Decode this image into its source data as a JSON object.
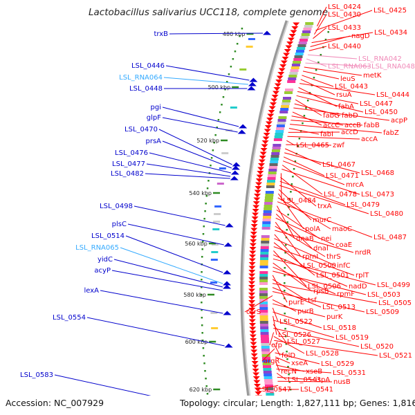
{
  "title": "Lactobacillus salivarius UCC118, complete genome",
  "footer": {
    "accession": "Accession: NC_007929",
    "info": "Topology: circular; Length: 1,827,111 bp; Genes: 1,816"
  },
  "colors": {
    "forward": "#ff0000",
    "reverse": "#0000cc",
    "rna": "#33aaff",
    "rna_light": "#f08ab8",
    "backbone": "#888888",
    "kbp_tick": "#2e8b22"
  },
  "ticks": [
    "480 kbp",
    "500 kbp",
    "520 kbp",
    "540 kbp",
    "560 kbp",
    "580 kbp",
    "600 kbp",
    "620 kbp"
  ],
  "left_labels": [
    {
      "text": "trxB",
      "kind": "reverse"
    },
    {
      "text": "LSL_0446",
      "kind": "reverse"
    },
    {
      "text": "LSL_RNA064",
      "kind": "rna"
    },
    {
      "text": "LSL_0448",
      "kind": "reverse"
    },
    {
      "text": "pgi",
      "kind": "reverse"
    },
    {
      "text": "glpF",
      "kind": "reverse"
    },
    {
      "text": "LSL_0470",
      "kind": "reverse"
    },
    {
      "text": "prsA",
      "kind": "reverse"
    },
    {
      "text": "LSL_0476",
      "kind": "reverse"
    },
    {
      "text": "LSL_0477",
      "kind": "reverse"
    },
    {
      "text": "LSL_0482",
      "kind": "reverse"
    },
    {
      "text": "LSL_0498",
      "kind": "reverse"
    },
    {
      "text": "plsC",
      "kind": "reverse"
    },
    {
      "text": "LSL_0514",
      "kind": "reverse"
    },
    {
      "text": "LSL_RNA065",
      "kind": "rna"
    },
    {
      "text": "yidC",
      "kind": "reverse"
    },
    {
      "text": "acyP",
      "kind": "reverse"
    },
    {
      "text": "lexA",
      "kind": "reverse"
    },
    {
      "text": "LSL_0554",
      "kind": "reverse"
    },
    {
      "text": "LSL_0583",
      "kind": "reverse"
    }
  ],
  "right_labels": [
    {
      "text": "LSL_0424",
      "kind": "forward"
    },
    {
      "text": "LSL_0425",
      "kind": "forward"
    },
    {
      "text": "LSL_0430",
      "kind": "forward"
    },
    {
      "text": "LSL_0433",
      "kind": "forward"
    },
    {
      "text": "LSL_0434",
      "kind": "forward"
    },
    {
      "text": "nagD",
      "kind": "forward"
    },
    {
      "text": "LSL_0440",
      "kind": "forward"
    },
    {
      "text": "LSL_RNA042",
      "kind": "rna_light"
    },
    {
      "text": "LSL_RNA063",
      "kind": "rna_light"
    },
    {
      "text": "LSL_RNA048",
      "kind": "rna_light"
    },
    {
      "text": "metK",
      "kind": "forward"
    },
    {
      "text": "leuS",
      "kind": "forward"
    },
    {
      "text": "LSL_0443",
      "kind": "forward"
    },
    {
      "text": "rsuA",
      "kind": "forward"
    },
    {
      "text": "LSL_0444",
      "kind": "forward"
    },
    {
      "text": "fabA",
      "kind": "forward"
    },
    {
      "text": "LSL_0447",
      "kind": "forward"
    },
    {
      "text": "LSL_0450",
      "kind": "forward"
    },
    {
      "text": "fabG",
      "kind": "forward"
    },
    {
      "text": "fabD",
      "kind": "forward"
    },
    {
      "text": "acpP",
      "kind": "forward"
    },
    {
      "text": "accC",
      "kind": "forward"
    },
    {
      "text": "accB",
      "kind": "forward"
    },
    {
      "text": "fabB",
      "kind": "forward"
    },
    {
      "text": "fabZ",
      "kind": "forward"
    },
    {
      "text": "fabI",
      "kind": "forward"
    },
    {
      "text": "accD",
      "kind": "forward"
    },
    {
      "text": "accA",
      "kind": "forward"
    },
    {
      "text": "LSL_0465",
      "kind": "forward"
    },
    {
      "text": "zwf",
      "kind": "forward"
    },
    {
      "text": "LSL_0467",
      "kind": "forward"
    },
    {
      "text": "LSL_0468",
      "kind": "forward"
    },
    {
      "text": "LSL_0471",
      "kind": "forward"
    },
    {
      "text": "mrcA",
      "kind": "forward"
    },
    {
      "text": "LSL_0478",
      "kind": "forward"
    },
    {
      "text": "LSL_0473",
      "kind": "forward"
    },
    {
      "text": "LSL_0484",
      "kind": "forward"
    },
    {
      "text": "trxA",
      "kind": "forward"
    },
    {
      "text": "LSL_0479",
      "kind": "forward"
    },
    {
      "text": "LSL_0480",
      "kind": "forward"
    },
    {
      "text": "murC",
      "kind": "forward"
    },
    {
      "text": "polA",
      "kind": "forward"
    },
    {
      "text": "maoC",
      "kind": "forward"
    },
    {
      "text": "LSL_0487",
      "kind": "forward"
    },
    {
      "text": "dnaB",
      "kind": "forward"
    },
    {
      "text": "nei",
      "kind": "forward"
    },
    {
      "text": "dnaI",
      "kind": "forward"
    },
    {
      "text": "coaE",
      "kind": "forward"
    },
    {
      "text": "rpmI",
      "kind": "forward"
    },
    {
      "text": "thrS",
      "kind": "forward"
    },
    {
      "text": "nrdR",
      "kind": "forward"
    },
    {
      "text": "LSL_0500",
      "kind": "forward"
    },
    {
      "text": "infC",
      "kind": "forward"
    },
    {
      "text": "LSL_0501",
      "kind": "forward"
    },
    {
      "text": "rplT",
      "kind": "forward"
    },
    {
      "text": "LSL_0506",
      "kind": "forward"
    },
    {
      "text": "nadD",
      "kind": "forward"
    },
    {
      "text": "LSL_0499",
      "kind": "forward"
    },
    {
      "text": "rpsB",
      "kind": "forward"
    },
    {
      "text": "rpmF",
      "kind": "forward"
    },
    {
      "text": "LSL_0503",
      "kind": "forward"
    },
    {
      "text": "purE",
      "kind": "forward"
    },
    {
      "text": "tsf",
      "kind": "forward"
    },
    {
      "text": "LSL_0505",
      "kind": "forward"
    },
    {
      "text": "LSL_0513",
      "kind": "forward"
    },
    {
      "text": "LSL_0509",
      "kind": "forward"
    },
    {
      "text": "csrS",
      "kind": "forward"
    },
    {
      "text": "purB",
      "kind": "forward"
    },
    {
      "text": "purK",
      "kind": "forward"
    },
    {
      "text": "LSL_0522",
      "kind": "forward"
    },
    {
      "text": "LSL_0518",
      "kind": "forward"
    },
    {
      "text": "LSL_0526",
      "kind": "forward"
    },
    {
      "text": "LSL_0519",
      "kind": "forward"
    },
    {
      "text": "LSL_0527",
      "kind": "forward"
    },
    {
      "text": "LSL_0520",
      "kind": "forward"
    },
    {
      "text": "efp",
      "kind": "forward"
    },
    {
      "text": "LSL_0528",
      "kind": "forward"
    },
    {
      "text": "LSL_0521",
      "kind": "forward"
    },
    {
      "text": "folD",
      "kind": "forward"
    },
    {
      "text": "argR",
      "kind": "forward"
    },
    {
      "text": "LSL_0529",
      "kind": "forward"
    },
    {
      "text": "xseA",
      "kind": "forward"
    },
    {
      "text": "recN",
      "kind": "forward"
    },
    {
      "text": "xseB",
      "kind": "forward"
    },
    {
      "text": "LSL_0531",
      "kind": "forward"
    },
    {
      "text": "LSL_0543",
      "kind": "forward"
    },
    {
      "text": "ispA",
      "kind": "forward"
    },
    {
      "text": "nusB",
      "kind": "forward"
    },
    {
      "text": "LSL_0547",
      "kind": "forward"
    },
    {
      "text": "LSL_0541",
      "kind": "forward"
    }
  ]
}
